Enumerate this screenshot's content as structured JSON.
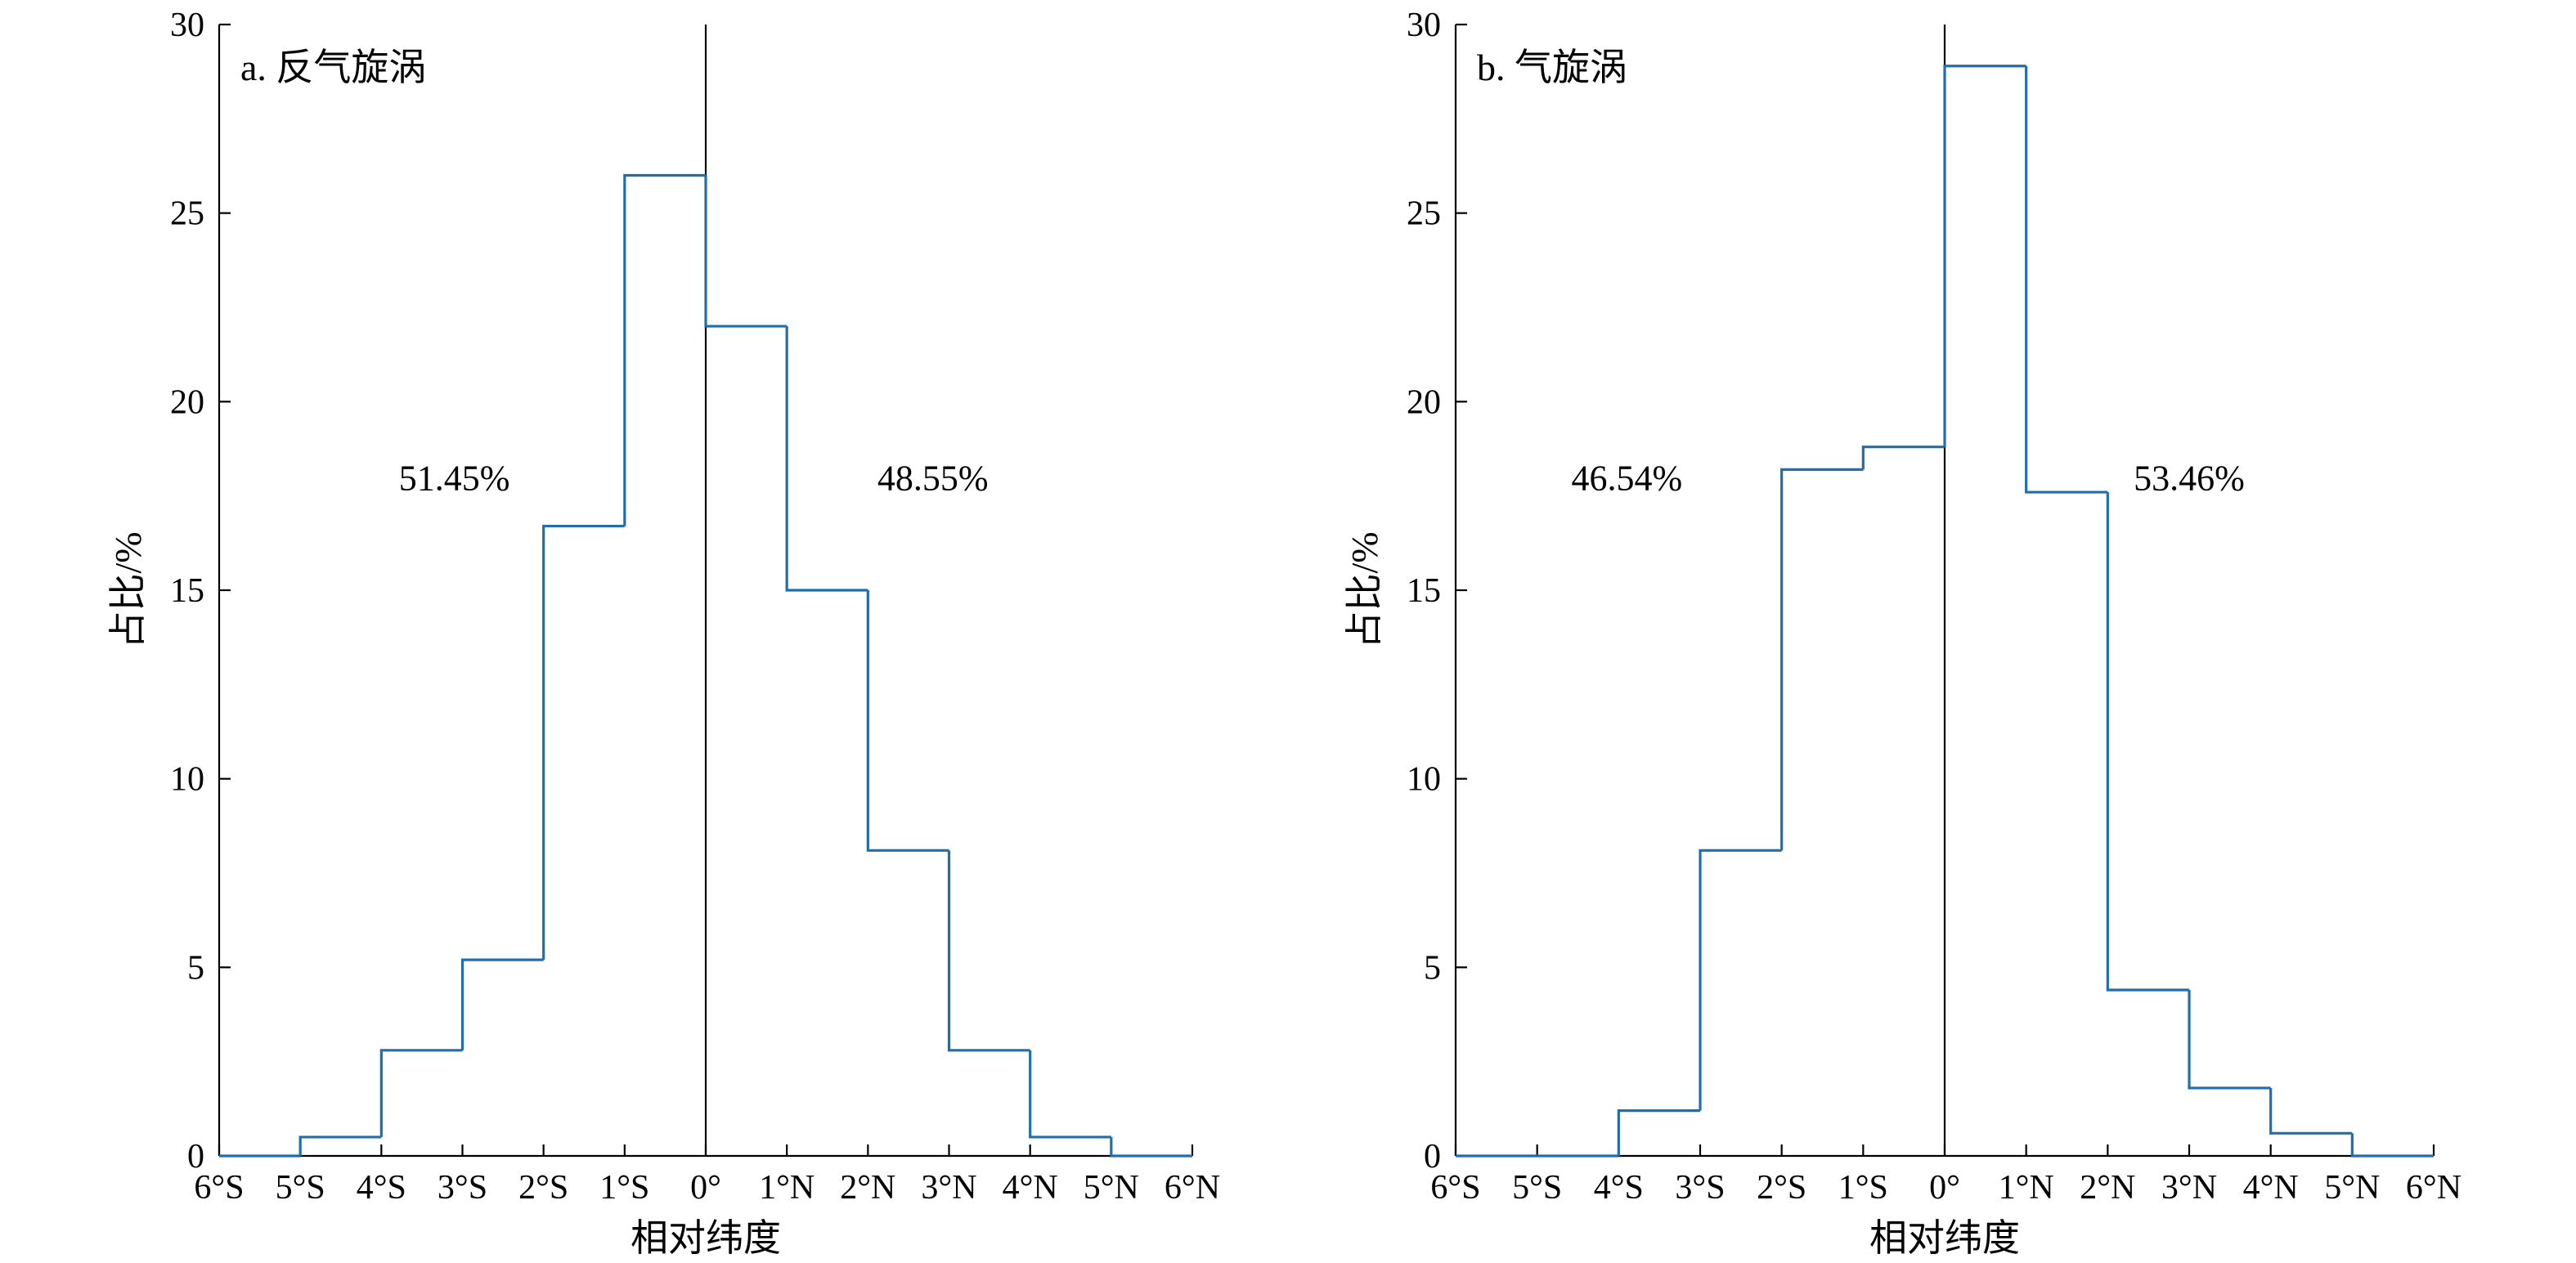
{
  "chart_data": [
    {
      "type": "bar",
      "title": "a. 反气旋涡",
      "xlabel": "相对纬度",
      "ylabel": "占比/%",
      "x_tick_labels": [
        "6°S",
        "5°S",
        "4°S",
        "3°S",
        "2°S",
        "1°S",
        "0°",
        "1°N",
        "2°N",
        "3°N",
        "4°N",
        "5°N",
        "6°N"
      ],
      "bin_edges": [
        -6,
        -5,
        -4,
        -3,
        -2,
        -1,
        0,
        1,
        2,
        3,
        4,
        5,
        6
      ],
      "values": [
        0,
        0.5,
        2.8,
        5.2,
        16.7,
        26.0,
        22.0,
        15.0,
        8.1,
        2.8,
        0.5,
        0
      ],
      "xlim": [
        -6,
        6
      ],
      "ylim": [
        0,
        30
      ],
      "y_ticks": [
        0,
        5,
        10,
        15,
        20,
        25,
        30
      ],
      "annotations": [
        {
          "text": "51.45%",
          "x": -3.1,
          "y": 18
        },
        {
          "text": "48.55%",
          "x": 2.8,
          "y": 18
        }
      ],
      "color": "#1f6fb0",
      "grid": false
    },
    {
      "type": "bar",
      "title": "b. 气旋涡",
      "xlabel": "相对纬度",
      "ylabel": "占比/%",
      "x_tick_labels": [
        "6°S",
        "5°S",
        "4°S",
        "3°S",
        "2°S",
        "1°S",
        "0°",
        "1°N",
        "2°N",
        "3°N",
        "4°N",
        "5°N",
        "6°N"
      ],
      "bin_edges": [
        -6,
        -5,
        -4,
        -3,
        -2,
        -1,
        0,
        1,
        2,
        3,
        4,
        5,
        6
      ],
      "values": [
        0,
        0,
        1.2,
        8.1,
        18.2,
        18.8,
        28.9,
        17.6,
        4.4,
        1.8,
        0.6,
        0
      ],
      "xlim": [
        -6,
        6
      ],
      "ylim": [
        0,
        30
      ],
      "y_ticks": [
        0,
        5,
        10,
        15,
        20,
        25,
        30
      ],
      "annotations": [
        {
          "text": "46.54%",
          "x": -3.9,
          "y": 18
        },
        {
          "text": "53.46%",
          "x": 3.0,
          "y": 18
        }
      ],
      "color": "#1f6fb0",
      "grid": false
    }
  ]
}
